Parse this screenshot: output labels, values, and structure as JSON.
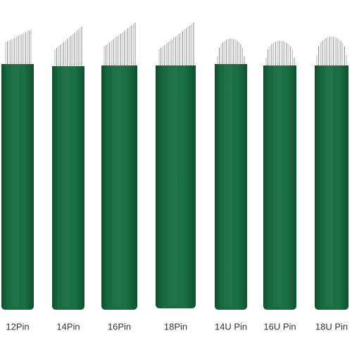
{
  "labels": [
    "12Pin",
    "14Pin",
    "16Pin",
    "18Pin",
    "14U Pin",
    "16U Pin",
    "18U Pin"
  ]
}
